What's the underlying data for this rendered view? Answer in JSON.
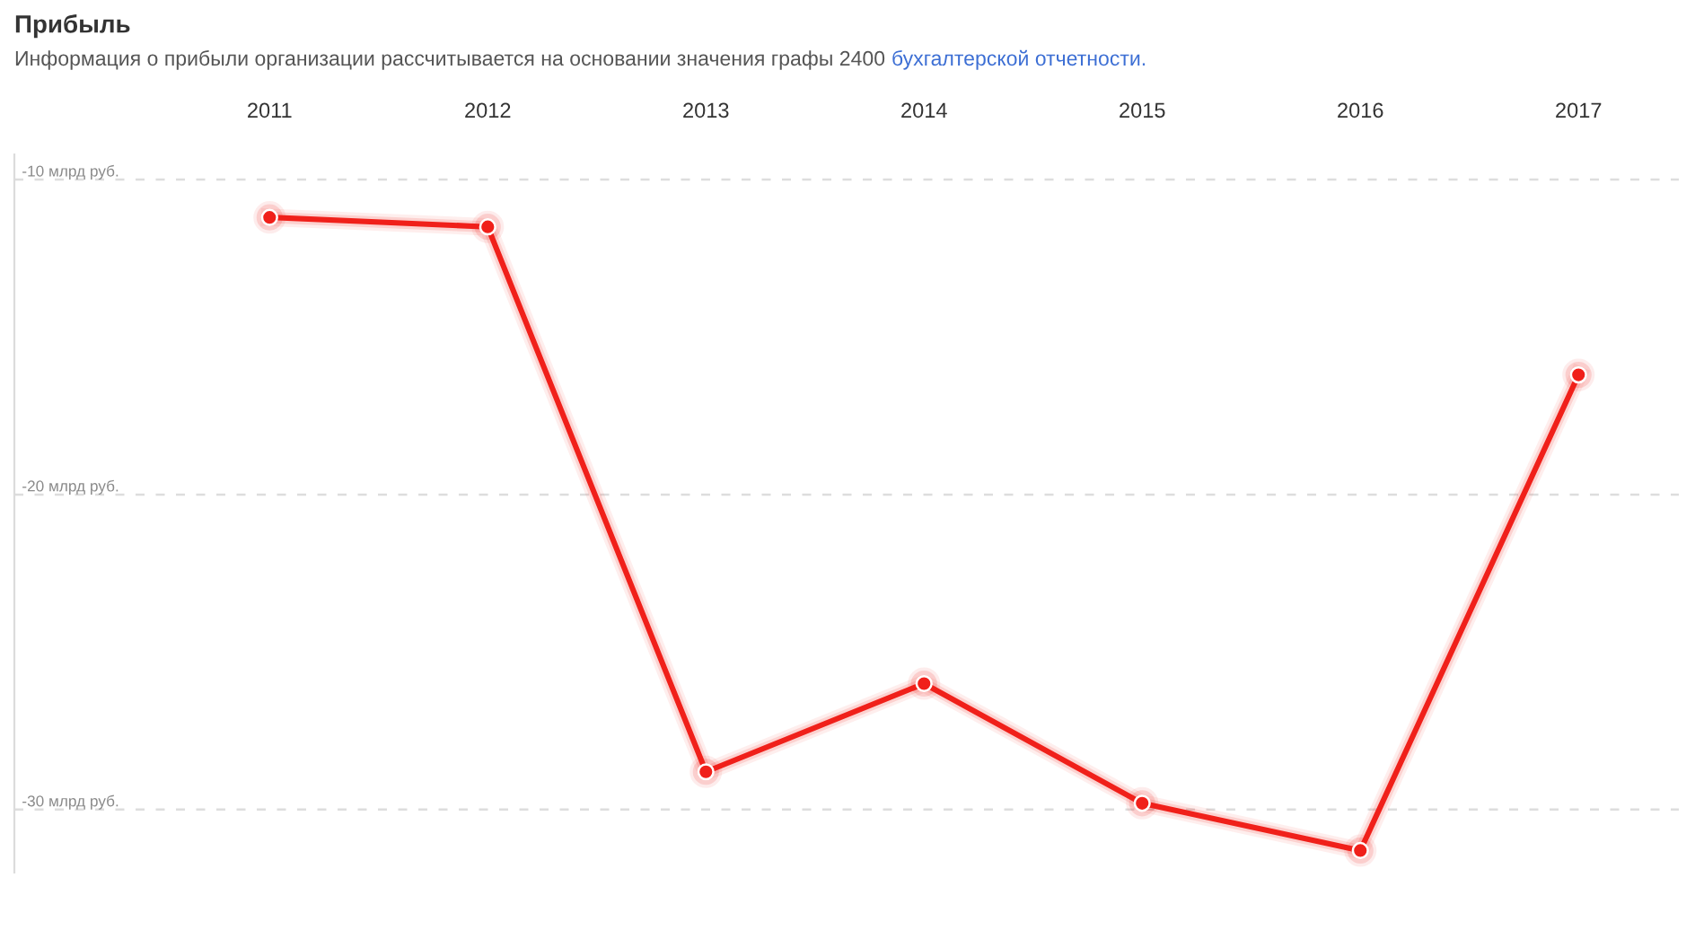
{
  "chart_data": {
    "type": "line",
    "title": "Прибыль",
    "subtitle": "Информация о прибыли организации рассчитывается на основании значения графы 2400",
    "annotations": [
      "бухгалтерской отчетности."
    ],
    "categories": [
      "2011",
      "2012",
      "2013",
      "2014",
      "2015",
      "2016",
      "2017"
    ],
    "values": [
      -11.2,
      -11.5,
      -28.8,
      -26.0,
      -29.8,
      -31.3,
      -16.2
    ],
    "color": "#f0201a",
    "ylim": [
      -32,
      -9.2
    ],
    "yticks": [
      {
        "value": -10,
        "label": "-10 млрд руб."
      },
      {
        "value": -20,
        "label": "-20 млрд руб."
      },
      {
        "value": -30,
        "label": "-30 млрд руб."
      }
    ],
    "grid": "y",
    "marker": "circle",
    "line_style": "solid"
  }
}
